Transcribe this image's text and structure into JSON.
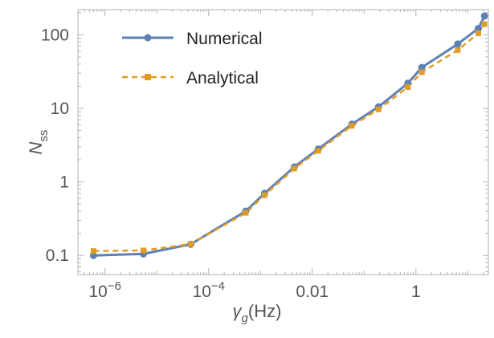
{
  "chart_data": {
    "type": "line",
    "title": "",
    "xlabel": "γ_g(Hz)",
    "ylabel": "N_ss",
    "x_scale": "log",
    "y_scale": "log",
    "xlim": [
      3e-07,
      25
    ],
    "ylim": [
      0.055,
      220
    ],
    "grid": false,
    "legend_position": "top-left",
    "x_ticks": [
      {
        "value": 1e-06,
        "label": "10^-6"
      },
      {
        "value": 0.0001,
        "label": "10^-4"
      },
      {
        "value": 0.01,
        "label": "0.01"
      },
      {
        "value": 1,
        "label": "1"
      }
    ],
    "y_ticks": [
      {
        "value": 0.1,
        "label": "0.1"
      },
      {
        "value": 1,
        "label": "1"
      },
      {
        "value": 10,
        "label": "10"
      },
      {
        "value": 100,
        "label": "100"
      }
    ],
    "series": [
      {
        "name": "Numerical",
        "color": "#5e81b5",
        "line_style": "solid",
        "marker": "circle",
        "x": [
          6e-07,
          5.5e-06,
          4.5e-05,
          0.00052,
          0.0012,
          0.0045,
          0.013,
          0.058,
          0.19,
          0.7,
          1.3,
          6.4,
          16,
          21
        ],
        "y": [
          0.1,
          0.105,
          0.142,
          0.4,
          0.7,
          1.6,
          2.8,
          6.1,
          10.5,
          22,
          36,
          75,
          122,
          180
        ]
      },
      {
        "name": "Analytical",
        "color": "#e19c24",
        "line_style": "dashed",
        "marker": "square",
        "x": [
          6e-07,
          5.5e-06,
          4.5e-05,
          0.00052,
          0.0012,
          0.0045,
          0.013,
          0.058,
          0.19,
          0.7,
          1.3,
          6.4,
          16,
          21
        ],
        "y": [
          0.115,
          0.117,
          0.143,
          0.38,
          0.66,
          1.52,
          2.65,
          5.8,
          9.7,
          19.5,
          31,
          62,
          105,
          140
        ]
      }
    ]
  }
}
